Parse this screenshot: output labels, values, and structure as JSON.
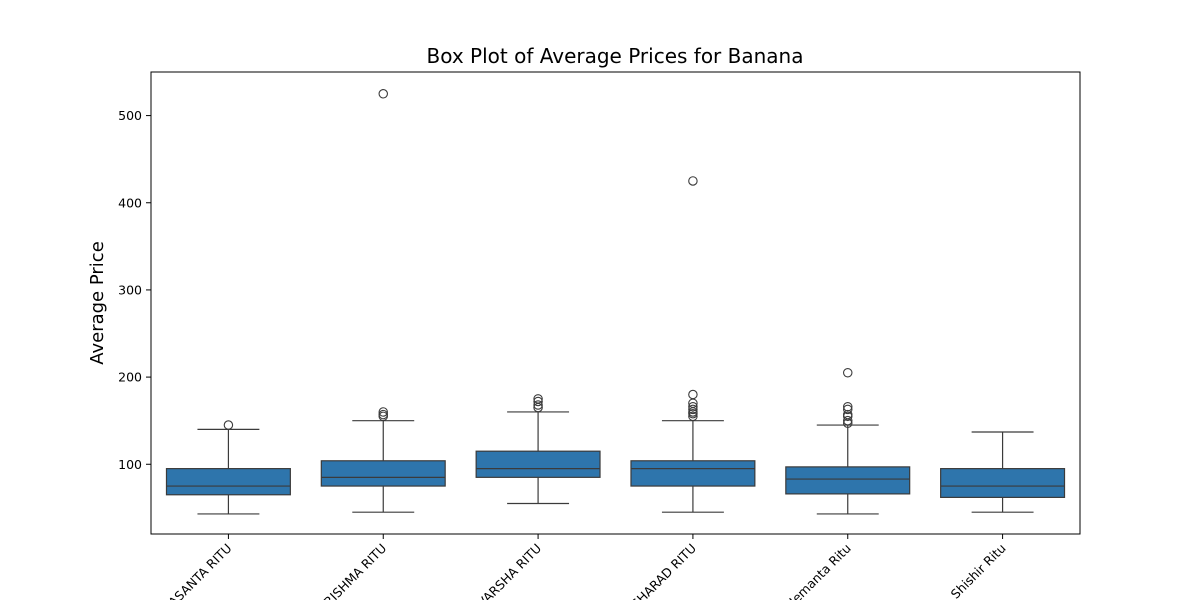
{
  "chart_data": {
    "type": "box",
    "title": "Box Plot of Average Prices for Banana",
    "xlabel": "",
    "ylabel": "Average Price",
    "ylim": [
      20,
      550
    ],
    "yticks": [
      100,
      200,
      300,
      400,
      500
    ],
    "grid": false,
    "legend": "none",
    "box_color": "#2e75ac",
    "line_color": "#3b3b3b",
    "categories": [
      "VASANTA RITU",
      "GRISHMA RITU",
      "VARSHA RITU",
      "SHARAD RITU",
      "Hemanta Ritu",
      "Shishir Ritu"
    ],
    "boxes": [
      {
        "whislo": 43,
        "q1": 65,
        "med": 75,
        "q3": 95,
        "whishi": 140,
        "fliers": [
          145
        ]
      },
      {
        "whislo": 45,
        "q1": 75,
        "med": 85,
        "q3": 104,
        "whishi": 150,
        "fliers": [
          155,
          157,
          160,
          525
        ]
      },
      {
        "whislo": 55,
        "q1": 85,
        "med": 95,
        "q3": 115,
        "whishi": 160,
        "fliers": [
          165,
          168,
          172,
          175
        ]
      },
      {
        "whislo": 45,
        "q1": 75,
        "med": 95,
        "q3": 104,
        "whishi": 150,
        "fliers": [
          155,
          158,
          160,
          163,
          166,
          170,
          180,
          425
        ]
      },
      {
        "whislo": 43,
        "q1": 66,
        "med": 83,
        "q3": 97,
        "whishi": 145,
        "fliers": [
          147,
          150,
          155,
          157,
          163,
          166,
          205
        ]
      },
      {
        "whislo": 45,
        "q1": 62,
        "med": 75,
        "q3": 95,
        "whishi": 137,
        "fliers": []
      }
    ]
  }
}
